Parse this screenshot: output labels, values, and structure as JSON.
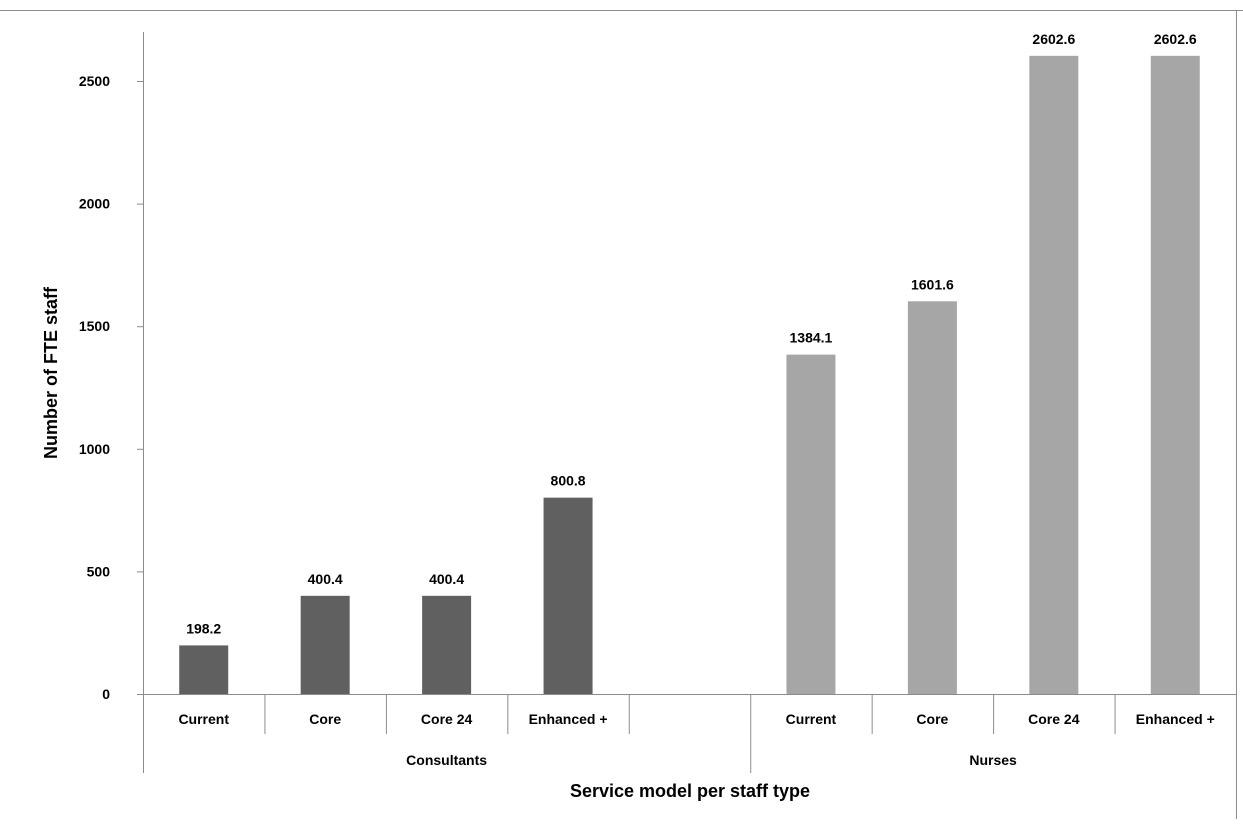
{
  "chart_data": {
    "type": "bar",
    "title": "",
    "xlabel": "Service model per staff type",
    "ylabel": "Number of FTE staff",
    "ylim": [
      0,
      2800
    ],
    "yticks": [
      0,
      500,
      1000,
      1500,
      2000,
      2500
    ],
    "grid": false,
    "legend": "none",
    "groups": [
      {
        "name": "Consultants",
        "color": "#606060",
        "categories": [
          "Current",
          "Core",
          "Core 24",
          "Enhanced +",
          ""
        ],
        "values": [
          198.2,
          400.4,
          400.4,
          800.8,
          null
        ]
      },
      {
        "name": "Nurses",
        "color": "#a6a6a6",
        "categories": [
          "Current",
          "Core",
          "Core 24",
          "Enhanced +"
        ],
        "values": [
          1384.1,
          1601.6,
          2602.6,
          2602.6
        ]
      }
    ]
  }
}
